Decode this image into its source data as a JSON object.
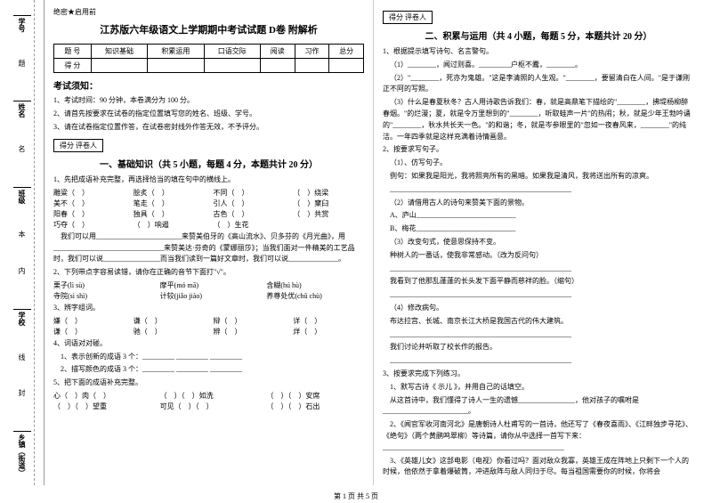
{
  "secret_label": "绝密★启用前",
  "title": "江苏版六年级语文上学期期中考试试题 D卷 附解析",
  "score_table": {
    "header": [
      "题 号",
      "知识基础",
      "积累运用",
      "口语交际",
      "阅读",
      "习作",
      "总分"
    ],
    "row_label": "得 分"
  },
  "notice": {
    "title": "考试须知：",
    "items": [
      "1、考试时间：90 分钟，本卷满分为 100 分。",
      "2、请首先按要求在试卷的指定位置填写您的姓名、班级、学号。",
      "3、请在试卷指定位置作答，在试卷密封线外作答无效，不予评分。"
    ]
  },
  "section_box": "得分  评卷人",
  "section1_title": "一、基础知识（共 5 小题，每题 4 分，本题共计 20 分）",
  "q1": {
    "stem": "1、先把成语补充完整，再选择恰当的填在句中的横线上。",
    "rows": [
      [
        "雕粱（　）",
        "脍炙（　）",
        "不同（　）",
        "（　）绕梁"
      ],
      [
        "美不（　）",
        "笔走（　）",
        "引人（　）",
        "（　）窠臼"
      ],
      [
        "阳春（　）",
        "独具（　）",
        "古色（　）",
        "（　）共赏"
      ],
      [
        "巧夺（　）",
        "（　）响遏",
        "（　）生花",
        ""
      ]
    ],
    "text1": "我们可以用________________________来赞美伯牙的《高山流水》、贝多芬的《月光曲》，用_______________________________来赞美达·芬奇的《蒙娜丽莎》；当我们面对一件精美的工艺品时，我们可以说________________而当我们读到一篇好文章时，我们可以说______________。"
  },
  "q2": {
    "stem": "2、下列带点字容易读错，请你在正确的音节下面打\"√\"。",
    "rows": [
      [
        "栗子(lì sù)",
        "摩平(mó mā)",
        "含糊(hú hù)"
      ],
      [
        "寺院(sì shì)",
        "计较(jiǎo jiào)",
        "养尊处优(chǔ chù)"
      ]
    ]
  },
  "q3": {
    "stem": "3、辨字组词。",
    "rows": [
      [
        "嫌（　）",
        "谦（　）",
        "辩（　）",
        "详（　）"
      ],
      [
        "谦（　）",
        "驰（　）",
        "辨（　）",
        "烊（　）"
      ]
    ]
  },
  "q4": {
    "stem": "4、词语对对碰。",
    "items": [
      "1、表示创新的成语 3 个：_________ _________ _________",
      "2、描写颜色的成语 3 个：_________ _________ _________"
    ]
  },
  "q5": {
    "stem": "5、把下面的成语补充完整。",
    "row": [
      "心（　）肉（　）",
      "（　）（　）如洗",
      "（　）（　）安席"
    ],
    "row2": [
      "（　）（　）望重",
      "可见（　）（　）",
      "（　）（　）石出"
    ]
  },
  "section2_title": "二、积累与运用（共 4 小题，每题 5 分，本题共计 20 分）",
  "q2_1": {
    "stem": "1、根据提示填写诗句、名言警句。",
    "items": [
      "（1）________，闻过则喜。_________户枢不蠹，________。",
      "（2）\"________，死亦为鬼雄。\"这是李清照的人生观。\"________，要留清白在人间。\"是于谦刚正不阿的写照。",
      "（3）什么是春夏秋冬？古人用诗歌告诉我们：春，就是高鼎笔下描绘的\"________，拂堤杨柳醉春烟。\"的烂漫；夏，就是令万里想到的\"________，听取蛙声一片\"的热闹；秋，就是少年王勃吟诵的\"________，秋水共长天一色。\"的和谐；冬，就是岑参眼里的\"忽如一夜春风来，________\"的纯洁。一年四季就是这样充满着诗情画意。"
    ]
  },
  "q2_2": {
    "stem": "2、按要求写句子。",
    "items": [
      "（1）、仿写句子。",
      "例句：如果我是阳光，我将照亮所有的黑暗。如果我是清风，我将送出所有的凉爽。",
      "___________________________________________________",
      "（2）请借用古人的诗句来赞美下面的景物。",
      "A、庐山____________________________",
      "B、梅花____________________________",
      "（3）改变句式，使意思保持不变。",
      "种树人的一番话，使我非常感动。（改为反问句）",
      "___________________________________________________",
      "我看到了他那乱蓬蓬的长头发下面平静而慈祥的脸。（缩句）",
      "___________________________________________________",
      "（4）修改病句。",
      "布达拉宫、长城、南京长江大桥是我国古代的伟大建筑。",
      "___________________________________________________",
      "我们讨论并听取了校长作的报告。",
      "___________________________________________________"
    ]
  },
  "q2_3": {
    "stem": "3、按要求完成下列练习。",
    "items": [
      "1、默写古诗《 示儿 》，并用自己的话填空。",
      "从这首诗中，我们懂得了诗人一生的遗憾________________，他对孩子的嘱咐是________________________。",
      "2、《闻官军收河南河北》是唐朝诗人杜甫写的一首诗，他还写了《春夜喜雨》、《江畔独步寻花》、《绝句》（两个黄鹂鸣翠柳）等诗篇，请你从中选择一首写下来：___________________________________________________",
      "3、《英雄儿女》这部电影（电视）你看过吗？面对敌众我寡，英雄王成在阵地上只剩下一个人的时候，他依然于拿着爆破筒，冲进敌阵与敌人同归于尽。每当祖国需要你的时候，你将会"
    ]
  },
  "gutter_labels": [
    "学号",
    "姓名",
    "班级",
    "学校",
    "乡镇（街道）"
  ],
  "gutter_marks": [
    "题",
    "名",
    "本",
    "内",
    "线",
    "封"
  ],
  "footer": "第 1 页 共 5 页"
}
